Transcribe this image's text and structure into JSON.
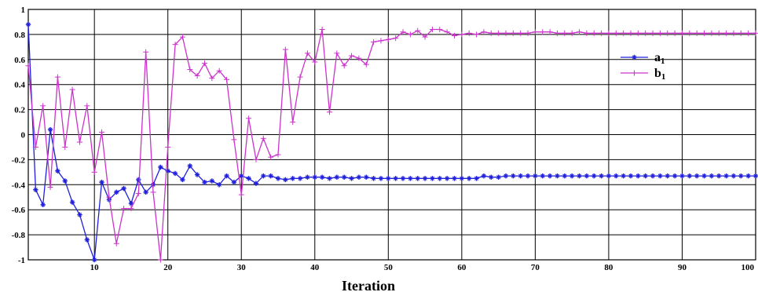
{
  "chart_data": {
    "type": "line",
    "title": "",
    "xlabel": "Iteration",
    "ylabel": "",
    "xlim": [
      1,
      100
    ],
    "ylim": [
      -1,
      1
    ],
    "xticks": [
      10,
      20,
      30,
      40,
      50,
      60,
      70,
      80,
      90,
      100
    ],
    "xtick_labels": [
      "10",
      "20",
      "30",
      "40",
      "50",
      "60",
      "70",
      "80",
      "90",
      "100"
    ],
    "yticks": [
      -1,
      -0.8,
      -0.6,
      -0.4,
      -0.2,
      0,
      0.2,
      0.4,
      0.6,
      0.8,
      1
    ],
    "ytick_labels": [
      "-1",
      "-0.8",
      "-0.6",
      "-0.4",
      "-0.2",
      "0",
      "0.2",
      "0.4",
      "0.6",
      "0.8",
      "1"
    ],
    "grid": true,
    "legend": {
      "position": "right"
    },
    "series": [
      {
        "name": "a1",
        "label_main": "a",
        "label_sub": "1",
        "color": "#1f1fdc",
        "marker": "star",
        "x": [
          1,
          2,
          3,
          4,
          5,
          6,
          7,
          8,
          9,
          10,
          11,
          12,
          13,
          14,
          15,
          16,
          17,
          18,
          19,
          20,
          21,
          22,
          23,
          24,
          25,
          26,
          27,
          28,
          29,
          30,
          31,
          32,
          33,
          34,
          35,
          36,
          37,
          38,
          39,
          40,
          41,
          42,
          43,
          44,
          45,
          46,
          47,
          48,
          49,
          50,
          51,
          52,
          53,
          54,
          55,
          56,
          57,
          58,
          59,
          60,
          61,
          62,
          63,
          64,
          65,
          66,
          67,
          68,
          69,
          70,
          71,
          72,
          73,
          74,
          75,
          76,
          77,
          78,
          79,
          80,
          81,
          82,
          83,
          84,
          85,
          86,
          87,
          88,
          89,
          90,
          91,
          92,
          93,
          94,
          95,
          96,
          97,
          98,
          99,
          100
        ],
        "values": [
          0.88,
          -0.44,
          -0.56,
          0.04,
          -0.29,
          -0.37,
          -0.54,
          -0.64,
          -0.84,
          -1.0,
          -0.38,
          -0.52,
          -0.46,
          -0.43,
          -0.55,
          -0.36,
          -0.46,
          -0.4,
          -0.26,
          -0.29,
          -0.31,
          -0.36,
          -0.25,
          -0.32,
          -0.38,
          -0.37,
          -0.4,
          -0.33,
          -0.38,
          -0.33,
          -0.35,
          -0.39,
          -0.33,
          -0.33,
          -0.35,
          -0.36,
          -0.35,
          -0.35,
          -0.34,
          -0.34,
          -0.34,
          -0.35,
          -0.34,
          -0.34,
          -0.35,
          -0.34,
          -0.34,
          -0.35,
          -0.35,
          -0.35,
          -0.35,
          -0.35,
          -0.35,
          -0.35,
          -0.35,
          -0.35,
          -0.35,
          -0.35,
          -0.35,
          -0.35,
          -0.35,
          -0.35,
          -0.33,
          -0.34,
          -0.34,
          -0.33,
          -0.33,
          -0.33,
          -0.33,
          -0.33,
          -0.33,
          -0.33,
          -0.33,
          -0.33,
          -0.33,
          -0.33,
          -0.33,
          -0.33,
          -0.33,
          -0.33,
          -0.33,
          -0.33,
          -0.33,
          -0.33,
          -0.33,
          -0.33,
          -0.33,
          -0.33,
          -0.33,
          -0.33,
          -0.33,
          -0.33,
          -0.33,
          -0.33,
          -0.33,
          -0.33,
          -0.33,
          -0.33,
          -0.33,
          -0.33
        ]
      },
      {
        "name": "b1",
        "label_main": "b",
        "label_sub": "1",
        "color": "#cc33cc",
        "marker": "plus",
        "x": [
          1,
          2,
          3,
          4,
          5,
          6,
          7,
          8,
          9,
          10,
          11,
          12,
          13,
          14,
          15,
          16,
          17,
          18,
          19,
          20,
          21,
          22,
          23,
          24,
          25,
          26,
          27,
          28,
          29,
          30,
          31,
          32,
          33,
          34,
          35,
          36,
          37,
          38,
          39,
          40,
          41,
          42,
          43,
          44,
          45,
          46,
          47,
          48,
          49,
          50,
          51,
          52,
          53,
          54,
          55,
          56,
          57,
          58,
          59,
          60,
          61,
          62,
          63,
          64,
          65,
          66,
          67,
          68,
          69,
          70,
          71,
          72,
          73,
          74,
          75,
          76,
          77,
          78,
          79,
          80,
          81,
          82,
          83,
          84,
          85,
          86,
          87,
          88,
          89,
          90,
          91,
          92,
          93,
          94,
          95,
          96,
          97,
          98,
          99,
          100
        ],
        "values": [
          0.55,
          -0.1,
          0.23,
          -0.42,
          0.46,
          -0.1,
          0.36,
          -0.06,
          0.23,
          -0.3,
          0.02,
          -0.5,
          -0.87,
          -0.59,
          -0.59,
          -0.47,
          0.66,
          -0.46,
          -1.0,
          -0.1,
          0.72,
          0.78,
          0.52,
          0.47,
          0.57,
          0.45,
          0.51,
          0.44,
          -0.04,
          -0.48,
          0.13,
          -0.2,
          -0.03,
          -0.18,
          -0.16,
          0.68,
          0.1,
          0.46,
          0.65,
          0.58,
          0.84,
          0.18,
          0.65,
          0.55,
          0.63,
          0.61,
          0.56,
          0.74,
          0.75,
          0.76,
          0.77,
          0.82,
          0.8,
          0.83,
          0.78,
          0.84,
          0.84,
          0.82,
          0.79,
          0.8,
          0.81,
          0.8,
          0.82,
          0.81,
          0.81,
          0.81,
          0.81,
          0.81,
          0.81,
          0.82,
          0.82,
          0.82,
          0.81,
          0.81,
          0.81,
          0.82,
          0.81,
          0.81,
          0.81,
          0.81,
          0.81,
          0.81,
          0.81,
          0.81,
          0.81,
          0.81,
          0.81,
          0.81,
          0.81,
          0.81,
          0.81,
          0.81,
          0.81,
          0.81,
          0.81,
          0.81,
          0.81,
          0.81,
          0.81,
          0.81
        ]
      }
    ]
  }
}
